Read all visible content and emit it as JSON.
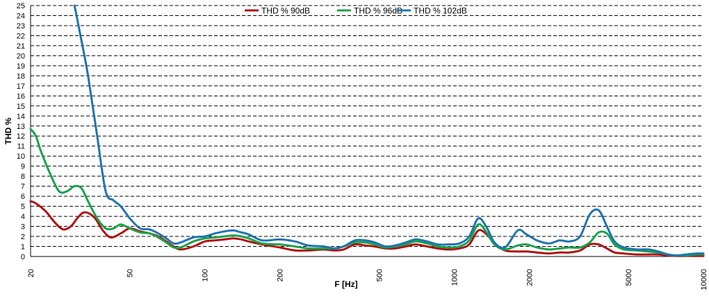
{
  "chart_data": {
    "type": "line",
    "title": "",
    "xlabel": "F [Hz]",
    "ylabel": "THD %",
    "xscale": "log",
    "xlim": [
      20,
      10000
    ],
    "ylim": [
      0,
      25
    ],
    "grid": "horizontal dashed",
    "legend": "top-center",
    "x_ticks": [
      "20",
      "50",
      "100",
      "200",
      "500",
      "1000",
      "2000",
      "5000",
      "10000"
    ],
    "y_ticks": [
      "0",
      "1",
      "2",
      "3",
      "4",
      "5",
      "6",
      "7",
      "8",
      "9",
      "10",
      "11",
      "12",
      "13",
      "14",
      "15",
      "16",
      "17",
      "18",
      "19",
      "20",
      "21",
      "22",
      "23",
      "24",
      "25"
    ],
    "series": [
      {
        "name": "THD % 90dB",
        "color": "#b01010",
        "x": [
          20,
          21,
          23,
          25,
          27,
          29,
          31,
          33,
          36,
          39,
          42,
          46,
          50,
          55,
          60,
          65,
          70,
          75,
          80,
          90,
          100,
          110,
          120,
          130,
          140,
          150,
          170,
          200,
          230,
          260,
          300,
          330,
          360,
          400,
          440,
          480,
          530,
          580,
          640,
          700,
          780,
          860,
          950,
          1050,
          1150,
          1250,
          1350,
          1450,
          1600,
          1800,
          1950,
          2150,
          2400,
          2650,
          2900,
          3200,
          3500,
          3800,
          4100,
          4400,
          4800,
          5400,
          6000,
          6600,
          7200,
          7800,
          8500,
          9300,
          10000
        ],
        "y": [
          5.5,
          5.3,
          4.5,
          3.4,
          2.7,
          3.0,
          3.9,
          4.4,
          3.9,
          2.6,
          1.9,
          2.3,
          2.8,
          2.5,
          2.3,
          2.0,
          1.5,
          1.0,
          0.7,
          1.0,
          1.5,
          1.6,
          1.7,
          1.8,
          1.7,
          1.5,
          1.2,
          0.9,
          0.6,
          0.6,
          0.7,
          0.6,
          0.7,
          1.2,
          1.1,
          1.0,
          0.8,
          0.8,
          1.0,
          1.2,
          1.0,
          0.8,
          0.7,
          0.8,
          1.2,
          2.6,
          2.2,
          1.3,
          0.6,
          0.5,
          0.5,
          0.4,
          0.3,
          0.4,
          0.4,
          0.6,
          1.2,
          1.2,
          0.8,
          0.4,
          0.3,
          0.2,
          0.2,
          0.2,
          0.1,
          0.05,
          0.05,
          0.05,
          0.05
        ]
      },
      {
        "name": "THD % 96dB",
        "color": "#17a34a",
        "x": [
          20,
          21,
          22,
          24,
          26,
          28,
          30,
          32,
          34,
          37,
          40,
          43,
          46,
          50,
          55,
          60,
          65,
          70,
          75,
          80,
          90,
          100,
          110,
          120,
          130,
          140,
          150,
          170,
          200,
          230,
          260,
          300,
          330,
          360,
          400,
          440,
          480,
          530,
          580,
          640,
          700,
          780,
          860,
          950,
          1050,
          1150,
          1250,
          1350,
          1450,
          1600,
          1800,
          1950,
          2150,
          2400,
          2650,
          2900,
          3200,
          3500,
          3800,
          4100,
          4400,
          4800,
          5400,
          6000,
          6600,
          7200,
          7800,
          8500,
          9300,
          10000
        ],
        "y": [
          12.7,
          12.0,
          10.5,
          8.2,
          6.5,
          6.5,
          7.0,
          6.8,
          5.5,
          3.8,
          2.8,
          2.8,
          3.2,
          2.8,
          2.4,
          2.3,
          1.9,
          1.4,
          0.9,
          0.9,
          1.5,
          1.8,
          1.9,
          2.0,
          2.1,
          2.0,
          1.8,
          1.3,
          1.2,
          1.0,
          0.8,
          0.8,
          0.8,
          1.0,
          1.4,
          1.4,
          1.2,
          0.9,
          1.0,
          1.2,
          1.5,
          1.3,
          1.0,
          0.9,
          1.0,
          1.6,
          3.2,
          2.4,
          1.2,
          0.7,
          1.1,
          1.2,
          0.9,
          0.7,
          0.8,
          0.9,
          0.9,
          1.4,
          2.4,
          2.3,
          1.2,
          0.7,
          0.6,
          0.5,
          0.4,
          0.2,
          0.1,
          0.1,
          0.2,
          0.2
        ]
      },
      {
        "name": "THD % 102dB",
        "color": "#1e74b0",
        "x": [
          20,
          21,
          22,
          24,
          26,
          28,
          30,
          32,
          34,
          37,
          40,
          43,
          46,
          50,
          55,
          60,
          65,
          70,
          75,
          80,
          90,
          100,
          110,
          120,
          130,
          140,
          150,
          170,
          200,
          230,
          260,
          300,
          330,
          360,
          400,
          440,
          480,
          530,
          580,
          640,
          700,
          780,
          860,
          950,
          1050,
          1150,
          1250,
          1350,
          1450,
          1600,
          1800,
          1950,
          2150,
          2400,
          2650,
          2900,
          3200,
          3500,
          3800,
          4100,
          4400,
          4800,
          5400,
          6000,
          6600,
          7200,
          7800,
          8500,
          9300,
          10000
        ],
        "y": [
          null,
          null,
          null,
          null,
          null,
          null,
          25.0,
          21.5,
          18.0,
          12.0,
          6.5,
          5.6,
          5.0,
          3.8,
          2.8,
          2.7,
          2.3,
          1.8,
          1.3,
          1.4,
          1.9,
          2.0,
          2.3,
          2.5,
          2.6,
          2.4,
          2.2,
          1.6,
          1.7,
          1.5,
          1.1,
          1.0,
          0.8,
          1.0,
          1.6,
          1.6,
          1.4,
          1.0,
          1.1,
          1.4,
          1.7,
          1.5,
          1.2,
          1.2,
          1.3,
          2.0,
          3.8,
          2.9,
          1.4,
          0.9,
          2.6,
          2.2,
          1.6,
          1.3,
          1.6,
          1.5,
          2.0,
          4.2,
          4.6,
          3.0,
          1.5,
          0.9,
          0.7,
          0.7,
          0.5,
          0.2,
          0.1,
          0.2,
          0.3,
          0.3
        ]
      }
    ]
  }
}
